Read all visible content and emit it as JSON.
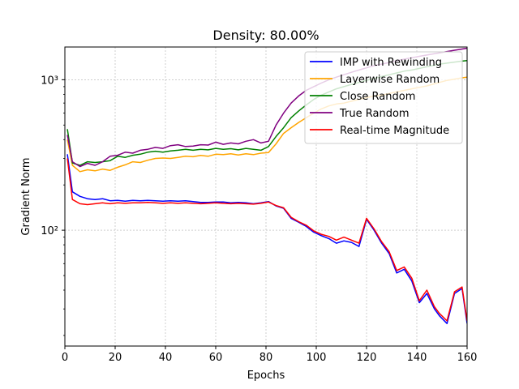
{
  "chart_data": {
    "type": "line",
    "title": "Density: 80.00%",
    "xlabel": "Epochs",
    "ylabel": "Gradient Norm",
    "xlim": [
      0,
      160
    ],
    "ylim": [
      17,
      1650
    ],
    "yscale": "log",
    "xticks": [
      0,
      20,
      40,
      60,
      80,
      100,
      120,
      140,
      160
    ],
    "yticks": [
      100,
      1000
    ],
    "ytick_labels": [
      "10²",
      "10³"
    ],
    "grid": true,
    "legend_position": "top-right",
    "series": [
      {
        "name": "IMP with Rewinding",
        "color": "#0000ff",
        "x": [
          1,
          3,
          6,
          9,
          12,
          15,
          18,
          21,
          24,
          27,
          30,
          33,
          36,
          39,
          42,
          45,
          48,
          51,
          54,
          57,
          60,
          63,
          66,
          69,
          72,
          75,
          78,
          81,
          84,
          87,
          90,
          93,
          96,
          99,
          102,
          105,
          108,
          111,
          114,
          117,
          120,
          123,
          126,
          129,
          132,
          135,
          138,
          141,
          144,
          147,
          149,
          152,
          155,
          158,
          160
        ],
        "y": [
          320,
          180,
          168,
          162,
          160,
          162,
          157,
          158,
          156,
          158,
          157,
          158,
          157,
          156,
          157,
          156,
          157,
          155,
          153,
          153,
          154,
          154,
          152,
          153,
          152,
          150,
          152,
          155,
          145,
          140,
          120,
          113,
          106,
          97,
          92,
          88,
          82,
          85,
          83,
          78,
          118,
          100,
          82,
          70,
          52,
          55,
          46,
          33,
          38,
          30,
          27,
          24,
          38,
          41,
          24
        ]
      },
      {
        "name": "Layerwise Random",
        "color": "#ffa500",
        "x": [
          1,
          3,
          6,
          9,
          12,
          15,
          18,
          21,
          24,
          27,
          30,
          33,
          36,
          39,
          42,
          45,
          48,
          51,
          54,
          57,
          60,
          63,
          66,
          69,
          72,
          75,
          78,
          81,
          84,
          87,
          90,
          93,
          96,
          99,
          102,
          105,
          108,
          111,
          114,
          117,
          120,
          123,
          126,
          129,
          132,
          135,
          138,
          141,
          144,
          147,
          149,
          152,
          155,
          158,
          160
        ],
        "y": [
          400,
          270,
          245,
          252,
          248,
          255,
          250,
          262,
          272,
          285,
          282,
          292,
          300,
          302,
          300,
          305,
          310,
          308,
          314,
          310,
          320,
          318,
          322,
          316,
          322,
          318,
          325,
          328,
          375,
          440,
          480,
          520,
          560,
          600,
          640,
          670,
          690,
          700,
          720,
          740,
          760,
          780,
          790,
          810,
          830,
          850,
          870,
          890,
          910,
          940,
          960,
          990,
          1010,
          1030,
          1040
        ]
      },
      {
        "name": "Close Random",
        "color": "#008000",
        "x": [
          1,
          3,
          6,
          9,
          12,
          15,
          18,
          21,
          24,
          27,
          30,
          33,
          36,
          39,
          42,
          45,
          48,
          51,
          54,
          57,
          60,
          63,
          66,
          69,
          72,
          75,
          78,
          81,
          84,
          87,
          90,
          93,
          96,
          99,
          102,
          105,
          108,
          111,
          114,
          117,
          120,
          123,
          126,
          129,
          132,
          135,
          138,
          141,
          144,
          147,
          149,
          152,
          155,
          158,
          160
        ],
        "y": [
          470,
          280,
          270,
          285,
          282,
          285,
          290,
          310,
          305,
          315,
          320,
          330,
          335,
          330,
          336,
          340,
          345,
          340,
          345,
          342,
          350,
          345,
          348,
          342,
          350,
          345,
          340,
          360,
          420,
          480,
          560,
          620,
          680,
          740,
          790,
          830,
          870,
          900,
          930,
          960,
          990,
          1020,
          1050,
          1080,
          1110,
          1140,
          1160,
          1190,
          1220,
          1250,
          1270,
          1290,
          1310,
          1330,
          1340
        ]
      },
      {
        "name": "True Random",
        "color": "#800080",
        "x": [
          1,
          3,
          6,
          9,
          12,
          15,
          18,
          21,
          24,
          27,
          30,
          33,
          36,
          39,
          42,
          45,
          48,
          51,
          54,
          57,
          60,
          63,
          66,
          69,
          72,
          75,
          78,
          81,
          84,
          87,
          90,
          93,
          96,
          99,
          102,
          105,
          108,
          111,
          114,
          117,
          120,
          123,
          126,
          129,
          132,
          135,
          138,
          141,
          144,
          147,
          149,
          152,
          155,
          158,
          160
        ],
        "y": [
          430,
          285,
          265,
          278,
          270,
          285,
          310,
          315,
          330,
          325,
          340,
          345,
          355,
          350,
          365,
          370,
          360,
          362,
          370,
          368,
          385,
          372,
          380,
          375,
          390,
          400,
          380,
          390,
          500,
          600,
          700,
          780,
          850,
          900,
          950,
          1000,
          1040,
          1080,
          1120,
          1160,
          1200,
          1240,
          1270,
          1300,
          1340,
          1370,
          1400,
          1430,
          1460,
          1490,
          1510,
          1540,
          1570,
          1600,
          1620
        ]
      },
      {
        "name": "Real-time Magnitude",
        "color": "#ff0000",
        "x": [
          1,
          3,
          6,
          9,
          12,
          15,
          18,
          21,
          24,
          27,
          30,
          33,
          36,
          39,
          42,
          45,
          48,
          51,
          54,
          57,
          60,
          63,
          66,
          69,
          72,
          75,
          78,
          81,
          84,
          87,
          90,
          93,
          96,
          99,
          102,
          105,
          108,
          111,
          114,
          117,
          120,
          123,
          126,
          129,
          132,
          135,
          138,
          141,
          144,
          147,
          149,
          152,
          155,
          158,
          160
        ],
        "y": [
          300,
          160,
          150,
          148,
          150,
          152,
          150,
          152,
          151,
          152,
          152,
          153,
          152,
          151,
          152,
          151,
          152,
          151,
          150,
          151,
          152,
          151,
          150,
          151,
          150,
          149,
          151,
          154,
          146,
          141,
          122,
          114,
          108,
          99,
          94,
          91,
          86,
          90,
          86,
          82,
          120,
          102,
          84,
          72,
          54,
          57,
          48,
          34,
          40,
          31,
          28,
          25,
          39,
          42,
          25
        ]
      }
    ]
  }
}
